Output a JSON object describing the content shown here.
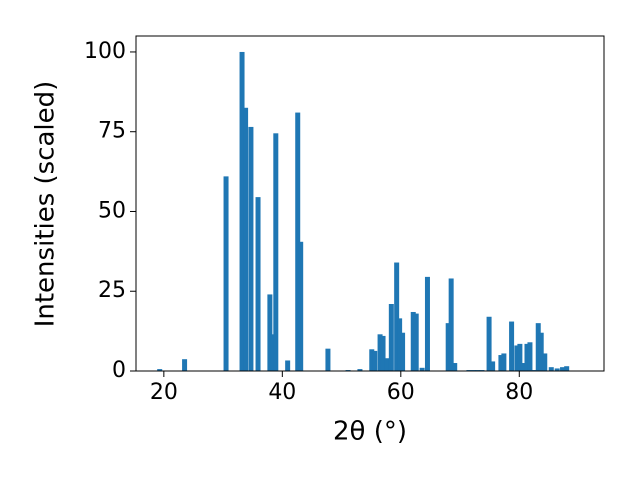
{
  "chart_data": {
    "type": "bar",
    "xlabel": "2θ (°)",
    "ylabel": "Intensities (scaled)",
    "x": [
      19.3,
      23.5,
      30.5,
      33.2,
      33.8,
      34.7,
      35.9,
      37.9,
      38.4,
      38.9,
      40.9,
      42.6,
      43.1,
      47.7,
      51.1,
      53.1,
      55.1,
      55.6,
      56.5,
      57.0,
      57.7,
      58.4,
      59.3,
      59.8,
      60.3,
      62.1,
      62.6,
      63.6,
      64.5,
      68.0,
      68.5,
      69.1,
      71.5,
      72.3,
      73.0,
      73.7,
      74.9,
      75.5,
      76.9,
      77.4,
      78.7,
      79.6,
      80.1,
      80.6,
      81.3,
      81.8,
      82.5,
      83.2,
      83.7,
      84.3,
      85.4,
      86.4,
      87.3,
      88.0
    ],
    "values": [
      0.6,
      3.7,
      61,
      100,
      82.5,
      76.5,
      54.5,
      24,
      11.5,
      74.5,
      3.3,
      81,
      40.5,
      7,
      0.3,
      0.6,
      6.8,
      6.3,
      11.5,
      11,
      4,
      21,
      34,
      16.5,
      12,
      18.5,
      18,
      1,
      29.5,
      15,
      29,
      2.5,
      0.3,
      0.3,
      0.3,
      0.3,
      17,
      3,
      5,
      5.5,
      15.5,
      8,
      8.5,
      2.5,
      8.5,
      9,
      0.3,
      15,
      12,
      5.5,
      1.2,
      0.8,
      1.2,
      1.5
    ],
    "color": "#1f77b4",
    "xlim": [
      15.3,
      94.3
    ],
    "xticks": [
      20,
      40,
      60,
      80
    ],
    "ylim": [
      0,
      105
    ],
    "yticks": [
      0,
      25,
      50,
      75,
      100
    ]
  }
}
